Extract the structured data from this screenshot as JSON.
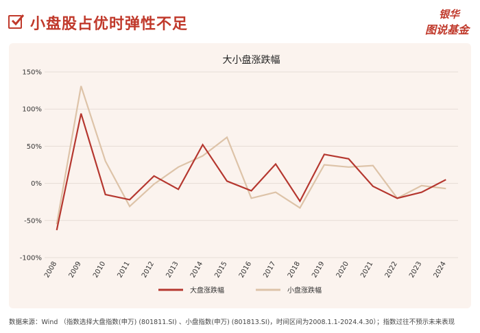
{
  "header": {
    "title": "小盘股占优时弹性不足",
    "brand_top": "银华",
    "brand_bottom": "图说基金"
  },
  "colors": {
    "accent": "#c0392b",
    "large_cap": "#b5372f",
    "small_cap": "#ddc3a8",
    "panel_bg": "#fbf3ee"
  },
  "footnote": "数据来源：Wind （指数选择大盘指数(申万) (801811.SI) 、小盘指数(申万) (801813.SI)，时间区间为2008.1.1-2024.4.30）；指数过往不预示未来表现",
  "chart_data": {
    "type": "line",
    "title": "大小盘涨跌幅",
    "categories": [
      "2008",
      "2009",
      "2010",
      "2011",
      "2012",
      "2013",
      "2014",
      "2015",
      "2016",
      "2017",
      "2018",
      "2019",
      "2020",
      "2021",
      "2022",
      "2023",
      "2024"
    ],
    "y_ticks": [
      "150%",
      "100%",
      "50%",
      "0%",
      "-50%",
      "-100%"
    ],
    "ylim": [
      -100,
      150
    ],
    "grid": true,
    "legend_position": "bottom",
    "series": [
      {
        "name": "大盘涨跌幅",
        "color": "#b5372f",
        "values": [
          -63,
          94,
          -15,
          -22,
          10,
          -8,
          52,
          3,
          -10,
          26,
          -24,
          39,
          33,
          -4,
          -20,
          -12,
          5
        ]
      },
      {
        "name": "小盘涨跌幅",
        "color": "#ddc3a8",
        "values": [
          -55,
          131,
          30,
          -31,
          -1,
          22,
          37,
          62,
          -20,
          -12,
          -33,
          25,
          22,
          24,
          -20,
          -3,
          -7
        ]
      }
    ]
  }
}
